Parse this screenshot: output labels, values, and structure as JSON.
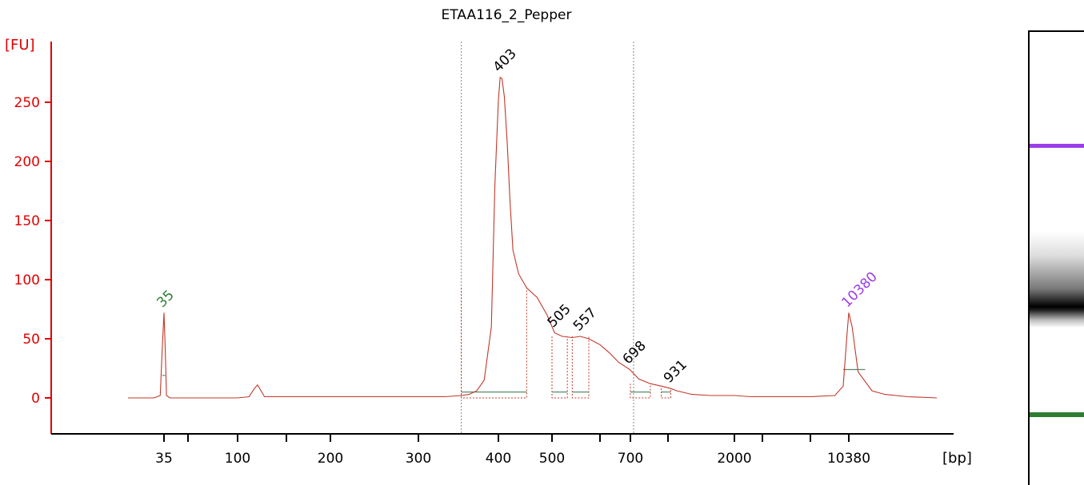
{
  "chart_data": {
    "type": "line",
    "title": "ETAA116_2_Pepper",
    "ylabel": "[FU]",
    "xlabel": "[bp]",
    "ylim": [
      -27,
      300
    ],
    "y_ticks": [
      0,
      50,
      100,
      150,
      200,
      250
    ],
    "x_ticks": [
      "35",
      "100",
      "200",
      "300",
      "400",
      "500",
      "700",
      "2000",
      "10380"
    ],
    "grid": false,
    "series": [
      {
        "color": "#c0392b",
        "x": [
          20,
          30,
          33,
          34,
          35,
          36,
          37,
          40,
          60,
          100,
          110,
          115,
          118,
          125,
          150,
          200,
          250,
          300,
          330,
          350,
          360,
          370,
          380,
          390,
          395,
          400,
          403,
          406,
          410,
          415,
          420,
          425,
          435,
          450,
          470,
          490,
          505,
          520,
          540,
          557,
          575,
          600,
          630,
          660,
          698,
          740,
          800,
          860,
          931,
          1000,
          1200,
          1500,
          2000,
          3000,
          5000,
          7000,
          9000,
          9800,
          10200,
          10380,
          10600,
          11000,
          12000,
          13000,
          15000,
          18000
        ],
        "values": [
          0,
          0,
          2,
          40,
          72,
          40,
          2,
          0,
          0,
          0,
          1,
          8,
          11,
          1,
          1,
          1,
          1,
          1,
          1,
          2,
          3,
          6,
          15,
          60,
          180,
          252,
          271,
          270,
          255,
          215,
          165,
          125,
          105,
          93,
          85,
          70,
          55,
          52,
          51,
          52,
          50,
          45,
          38,
          30,
          24,
          16,
          12,
          10,
          8,
          6,
          3,
          2,
          2,
          1,
          1,
          1,
          2,
          10,
          55,
          72,
          60,
          22,
          6,
          3,
          1,
          0
        ]
      }
    ],
    "peaks": [
      {
        "label": "35",
        "bp": 35,
        "fu": 72,
        "color": "#2e7d32"
      },
      {
        "label": "403",
        "bp": 403,
        "fu": 271,
        "color": "#000000"
      },
      {
        "label": "505",
        "bp": 505,
        "fu": 55,
        "color": "#000000"
      },
      {
        "label": "557",
        "bp": 557,
        "fu": 52,
        "color": "#000000"
      },
      {
        "label": "698",
        "bp": 698,
        "fu": 24,
        "color": "#000000"
      },
      {
        "label": "931",
        "bp": 931,
        "fu": 8,
        "color": "#000000"
      },
      {
        "label": "10380",
        "bp": 10380,
        "fu": 72,
        "color": "#9b3de8"
      }
    ],
    "region_markers_bp": [
      350,
      715
    ],
    "colors": {
      "axis": "#e00000",
      "trace": "#c0392b",
      "upper_marker": "#9b3de8",
      "lower_marker": "#2e7d32",
      "baseline": "#5a8a6a"
    }
  },
  "gel": {
    "bands": [
      {
        "name": "upper-marker",
        "fu": 72,
        "color": "#9b3de8"
      },
      {
        "name": "main-fragment",
        "fu": 271,
        "color": "#000000"
      },
      {
        "name": "lower-marker",
        "fu": 72,
        "color": "#2e7d32"
      }
    ]
  }
}
